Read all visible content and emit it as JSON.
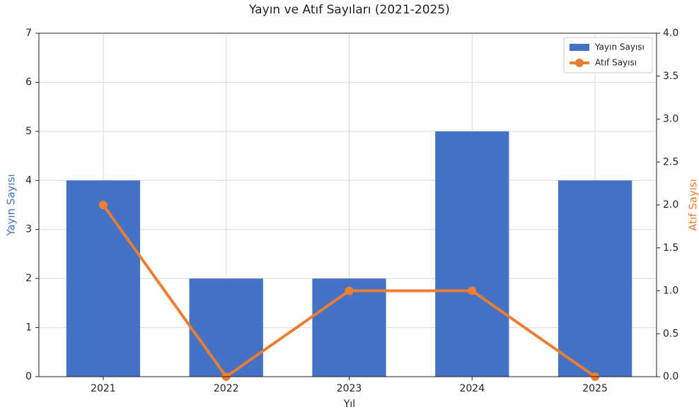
{
  "chart_data": {
    "type": "bar-line",
    "title": "Yayın ve Atıf Sayıları (2021-2025)",
    "xlabel": "Yıl",
    "ylabel": "Yayın Sayısı",
    "y2label": "Atıf Sayısı",
    "categories": [
      "2021",
      "2022",
      "2023",
      "2024",
      "2025"
    ],
    "series": [
      {
        "name": "Yayın Sayısı",
        "type": "bar",
        "color": "#4472c4",
        "axis": "y",
        "values": [
          4,
          2,
          2,
          5,
          4
        ]
      },
      {
        "name": "Atıf Sayısı",
        "type": "line",
        "color": "#ed7d31",
        "axis": "y2",
        "values": [
          2,
          0,
          1,
          1,
          0
        ]
      }
    ],
    "ylim": [
      0,
      7
    ],
    "yticks": [
      0,
      1,
      2,
      3,
      4,
      5,
      6,
      7
    ],
    "y2lim": [
      0,
      4
    ],
    "y2ticks": [
      {
        "value": 0,
        "label": "0.0"
      },
      {
        "value": 0.5,
        "label": "0.5"
      },
      {
        "value": 1,
        "label": "1.0"
      },
      {
        "value": 1.5,
        "label": "1.5"
      },
      {
        "value": 2,
        "label": "2.0"
      },
      {
        "value": 2.5,
        "label": "2.5"
      },
      {
        "value": 3,
        "label": "3.0"
      },
      {
        "value": 3.5,
        "label": "3.5"
      },
      {
        "value": 4,
        "label": "4.0"
      }
    ],
    "grid": true,
    "legend": "upper right"
  }
}
